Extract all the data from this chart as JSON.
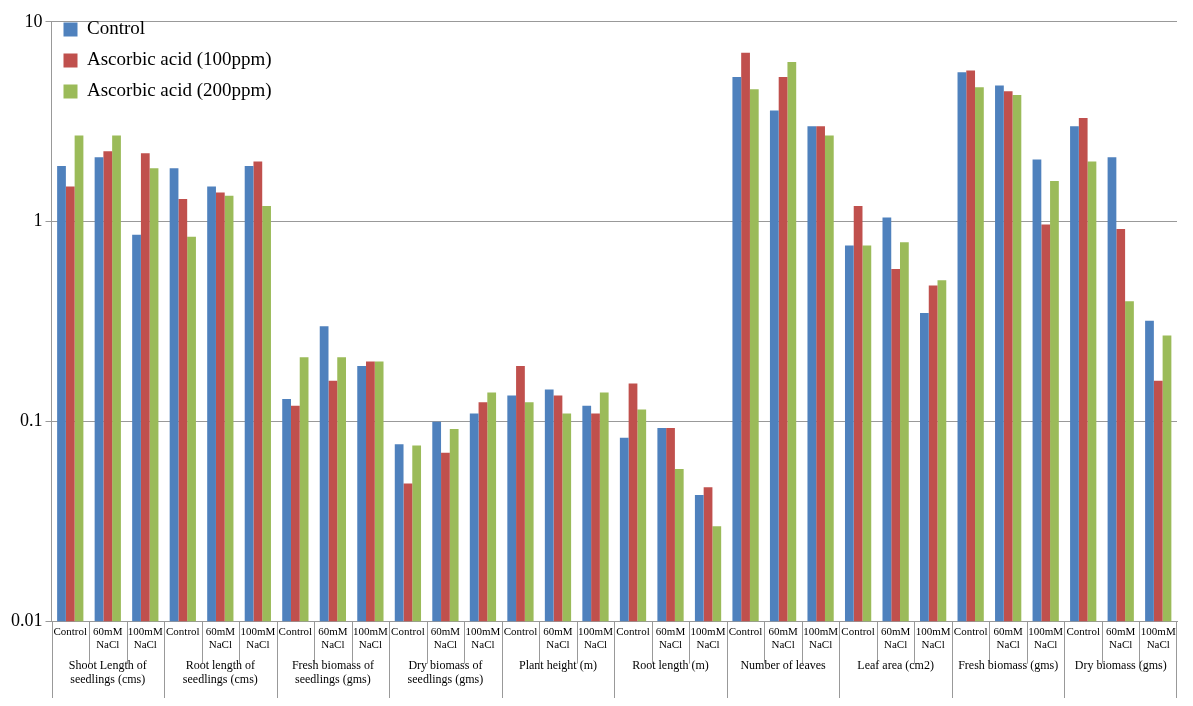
{
  "chart_data": {
    "type": "bar",
    "categories": [
      "Control",
      "60mM NaCl",
      "100mM NaCl",
      "Control",
      "60mM NaCl",
      "100mM NaCl",
      "Control",
      "60mM NaCl",
      "100mM NaCl",
      "Control",
      "60mM NaCl",
      "100mM NaCl",
      "Control",
      "60mM NaCl",
      "100mM NaCl",
      "Control",
      "60mM NaCl",
      "100mM NaCl",
      "Control",
      "60mM NaCl",
      "100mM NaCl",
      "Control",
      "60mM NaCl",
      "100mM NaCl",
      "Control",
      "60mM NaCl",
      "100mM NaCl",
      "Control",
      "60mM NaCl",
      "100mM NaCl"
    ],
    "series": [
      {
        "name": "Control",
        "color": "#4f81bd",
        "values": [
          1.9,
          2.1,
          0.86,
          1.85,
          1.5,
          1.9,
          0.13,
          0.3,
          0.19,
          0.077,
          0.1,
          0.11,
          0.135,
          0.145,
          0.12,
          0.083,
          0.093,
          0.043,
          5.3,
          3.6,
          3.0,
          0.76,
          1.05,
          0.35,
          5.6,
          4.8,
          2.05,
          3.0,
          2.1,
          0.32
        ]
      },
      {
        "name": "Ascorbic acid (100ppm)",
        "color": "#c0504d",
        "values": [
          1.5,
          2.25,
          2.2,
          1.3,
          1.4,
          2.0,
          0.12,
          0.16,
          0.2,
          0.049,
          0.07,
          0.125,
          0.19,
          0.135,
          0.11,
          0.155,
          0.093,
          0.047,
          7.0,
          5.3,
          3.0,
          1.2,
          0.58,
          0.48,
          5.7,
          4.5,
          0.97,
          3.3,
          0.92,
          0.16
        ]
      },
      {
        "name": "Ascorbic acid (200ppm)",
        "color": "#9bbb59",
        "values": [
          2.7,
          2.7,
          1.85,
          0.84,
          1.35,
          1.2,
          0.21,
          0.21,
          0.2,
          0.076,
          0.092,
          0.14,
          0.125,
          0.11,
          0.14,
          0.115,
          0.058,
          0.03,
          4.6,
          6.3,
          2.7,
          0.76,
          0.79,
          0.51,
          4.7,
          4.3,
          1.6,
          2.0,
          0.4,
          0.27
        ]
      }
    ],
    "annotations": [
      "Shoot Length  of seedlings  (cms)",
      "Root length of seedlings (cms)",
      "Fresh biomass of seedlings (gms)",
      "Dry biomass of seedlings (gms)",
      "Plant height (m)",
      "Root length (m)",
      "Number of leaves",
      "Leaf area (cm2)",
      "Fresh biomass (gms)",
      "Dry biomass (gms)"
    ],
    "log": true,
    "ylim": [
      0.01,
      10
    ],
    "yticks": [
      0.01,
      0.1,
      1,
      10
    ],
    "grid": "y",
    "legend": "top left"
  }
}
